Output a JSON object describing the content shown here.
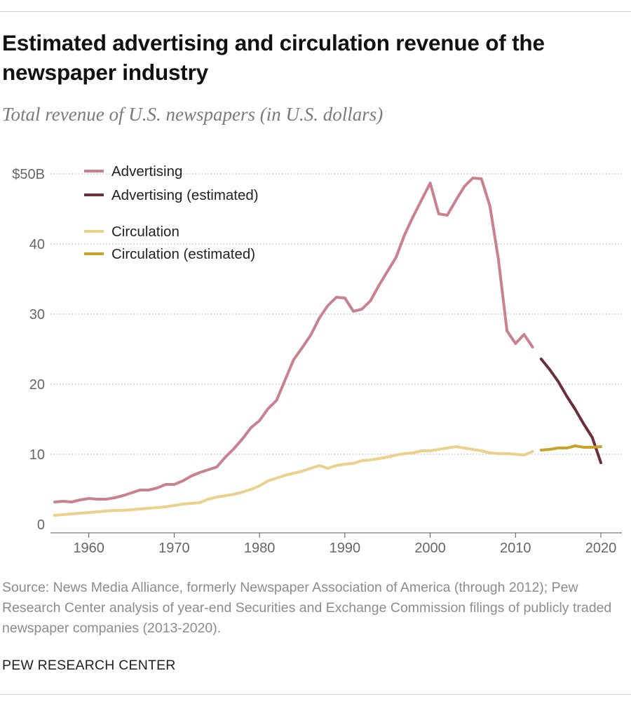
{
  "title": "Estimated advertising and circulation revenue of the newspaper industry",
  "subtitle": "Total revenue of U.S. newspapers (in U.S. dollars)",
  "source": "Source: News Media Alliance, formerly Newspaper Association of America (through 2012); Pew Research Center analysis of year-end Securities and Exchange Commission filings of publicly traded newspaper companies (2013-2020).",
  "brand": "PEW RESEARCH CENTER",
  "chart_data": {
    "type": "line",
    "ylim": [
      0,
      50
    ],
    "xlim": [
      1956,
      2020
    ],
    "y_ticks": [
      0,
      10,
      20,
      30,
      40,
      50
    ],
    "y_tick_labels": [
      "0",
      "10",
      "20",
      "30",
      "40",
      "$50B"
    ],
    "x_ticks": [
      1960,
      1970,
      1980,
      1990,
      2000,
      2010,
      2020
    ],
    "x_tick_labels": [
      "1960",
      "1970",
      "1980",
      "1990",
      "2000",
      "2010",
      "2020"
    ],
    "grid": "horizontal dotted",
    "legend": "top-left",
    "series": [
      {
        "name": "Advertising",
        "color": "#c9818f",
        "x": [
          1956,
          1957,
          1958,
          1959,
          1960,
          1961,
          1962,
          1963,
          1964,
          1965,
          1966,
          1967,
          1968,
          1969,
          1970,
          1971,
          1972,
          1973,
          1974,
          1975,
          1976,
          1977,
          1978,
          1979,
          1980,
          1981,
          1982,
          1983,
          1984,
          1985,
          1986,
          1987,
          1988,
          1989,
          1990,
          1991,
          1992,
          1993,
          1994,
          1995,
          1996,
          1997,
          1998,
          1999,
          2000,
          2001,
          2002,
          2003,
          2004,
          2005,
          2006,
          2007,
          2008,
          2009,
          2010,
          2011,
          2012
        ],
        "values": [
          3.2,
          3.3,
          3.2,
          3.5,
          3.7,
          3.6,
          3.6,
          3.8,
          4.1,
          4.5,
          4.9,
          4.9,
          5.2,
          5.7,
          5.7,
          6.2,
          6.9,
          7.4,
          7.8,
          8.2,
          9.6,
          10.8,
          12.2,
          13.8,
          14.8,
          16.5,
          17.7,
          20.6,
          23.5,
          25.2,
          27.0,
          29.4,
          31.2,
          32.4,
          32.3,
          30.4,
          30.7,
          31.9,
          34.1,
          36.1,
          38.1,
          41.3,
          43.9,
          46.3,
          48.7,
          44.3,
          44.1,
          46.2,
          48.2,
          49.4,
          49.3,
          45.4,
          37.8,
          27.6,
          25.8,
          27.1,
          25.3
        ]
      },
      {
        "name": "Advertising (estimated)",
        "color": "#6b2f3c",
        "x": [
          2013,
          2014,
          2015,
          2016,
          2017,
          2018,
          2019,
          2020
        ],
        "values": [
          23.6,
          22.1,
          20.4,
          18.3,
          16.4,
          14.3,
          12.4,
          8.8
        ]
      },
      {
        "name": "Circulation",
        "color": "#ecd18d",
        "x": [
          1956,
          1957,
          1958,
          1959,
          1960,
          1961,
          1962,
          1963,
          1964,
          1965,
          1966,
          1967,
          1968,
          1969,
          1970,
          1971,
          1972,
          1973,
          1974,
          1975,
          1976,
          1977,
          1978,
          1979,
          1980,
          1981,
          1982,
          1983,
          1984,
          1985,
          1986,
          1987,
          1988,
          1989,
          1990,
          1991,
          1992,
          1993,
          1994,
          1995,
          1996,
          1997,
          1998,
          1999,
          2000,
          2001,
          2002,
          2003,
          2004,
          2005,
          2006,
          2007,
          2008,
          2009,
          2010,
          2011,
          2012
        ],
        "values": [
          1.3,
          1.4,
          1.5,
          1.6,
          1.7,
          1.8,
          1.9,
          2.0,
          2.0,
          2.1,
          2.2,
          2.3,
          2.4,
          2.5,
          2.7,
          2.9,
          3.0,
          3.1,
          3.6,
          3.9,
          4.1,
          4.3,
          4.6,
          5.0,
          5.5,
          6.2,
          6.6,
          7.0,
          7.3,
          7.6,
          8.0,
          8.4,
          8.0,
          8.4,
          8.6,
          8.7,
          9.1,
          9.2,
          9.4,
          9.6,
          9.9,
          10.1,
          10.2,
          10.5,
          10.5,
          10.7,
          10.9,
          11.1,
          10.9,
          10.7,
          10.5,
          10.2,
          10.1,
          10.1,
          10.0,
          9.9,
          10.4
        ]
      },
      {
        "name": "Circulation (estimated)",
        "color": "#c9a227",
        "x": [
          2013,
          2014,
          2015,
          2016,
          2017,
          2018,
          2019,
          2020
        ],
        "values": [
          10.6,
          10.7,
          10.9,
          10.9,
          11.2,
          11.0,
          11.0,
          11.1
        ]
      }
    ]
  }
}
